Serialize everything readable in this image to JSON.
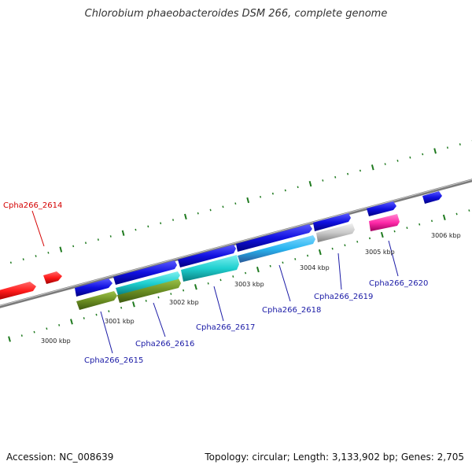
{
  "title": "Chlorobium phaeobacteroides DSM 266, complete genome",
  "footer": {
    "accession": "Accession: NC_008639",
    "summary": "Topology: circular; Length: 3,133,902 bp; Genes: 2,705"
  },
  "kbp_labels": [
    "3000 kbp",
    "3001 kbp",
    "3002 kbp",
    "3003 kbp",
    "3004 kbp",
    "3005 kbp",
    "3006 kbp"
  ],
  "gene_labels": {
    "g2614": "Cpha266_2614",
    "g2615": "Cpha266_2615",
    "g2616": "Cpha266_2616",
    "g2617": "Cpha266_2617",
    "g2618": "Cpha266_2618",
    "g2619": "Cpha266_2619",
    "g2620": "Cpha266_2620"
  },
  "colors": {
    "backbone": "#8a8a8a",
    "tick": "#1f7a1f",
    "red": "#ff1a1a",
    "blue": "#1010e0",
    "olive": "#6b8e23",
    "cyan": "#1fd0d0",
    "lightblue": "#27b4f0",
    "grey": "#c8c8c8",
    "magenta": "#ff2aa8"
  }
}
